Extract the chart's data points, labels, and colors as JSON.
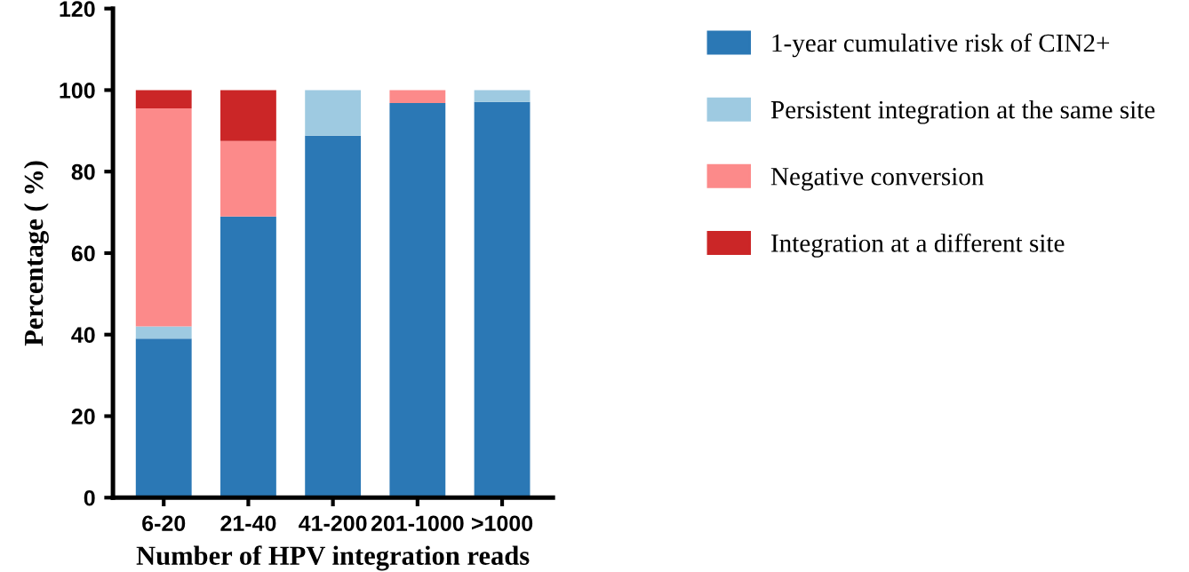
{
  "chart_data": {
    "type": "bar",
    "stacked": true,
    "xlabel": "Number of HPV integration reads",
    "ylabel": "Percentage ( %)",
    "categories": [
      "6-20",
      "21-40",
      "41-200",
      "201-1000",
      ">1000"
    ],
    "series": [
      {
        "name": "1-year cumulative risk of CIN2+",
        "color": "#2b78b5",
        "values": [
          39,
          69,
          88.8,
          96.8,
          97.1
        ]
      },
      {
        "name": "Persistent integration at the same site",
        "color": "#9ecae1",
        "values": [
          3,
          0,
          11.2,
          0,
          2.9
        ]
      },
      {
        "name": "Negative conversion",
        "color": "#fc8a8a",
        "values": [
          53.5,
          18.5,
          0,
          3.2,
          0
        ]
      },
      {
        "name": "Integration at a different site",
        "color": "#cb2627",
        "values": [
          4.5,
          12.5,
          0,
          0,
          0
        ]
      }
    ],
    "ylim": [
      0,
      120
    ],
    "yticks": [
      0,
      20,
      40,
      60,
      80,
      100,
      120
    ],
    "grid": false,
    "legend": "right"
  }
}
